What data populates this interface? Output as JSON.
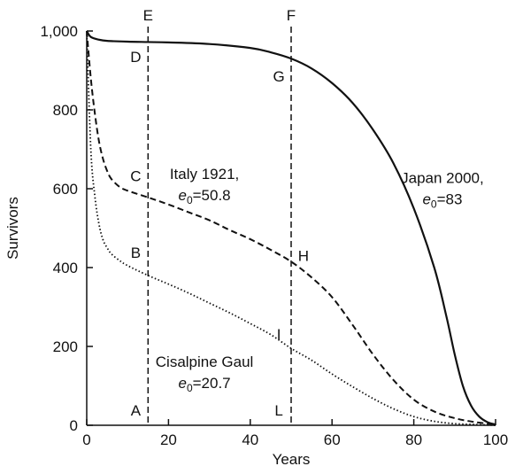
{
  "chart_data": {
    "type": "line",
    "title": "",
    "xlabel": "Years",
    "ylabel": "Survivors",
    "xlim": [
      0,
      100
    ],
    "ylim": [
      0,
      1000
    ],
    "x_ticks": [
      0,
      20,
      40,
      60,
      80,
      100
    ],
    "y_ticks": [
      0,
      200,
      400,
      600,
      800,
      1000
    ],
    "y_tick_labels": [
      "0",
      "200",
      "400",
      "600",
      "800",
      "1,000"
    ],
    "grid": false,
    "series": [
      {
        "name": "Japan 2000",
        "e0": "83",
        "style": "solid",
        "x": [
          0,
          1,
          3,
          5,
          10,
          15,
          20,
          30,
          40,
          45,
          50,
          55,
          60,
          65,
          70,
          75,
          80,
          85,
          88,
          90,
          92,
          94,
          96,
          98,
          100
        ],
        "y": [
          1000,
          985,
          978,
          975,
          973,
          972,
          971,
          967,
          957,
          946,
          930,
          905,
          868,
          818,
          750,
          665,
          550,
          400,
          275,
          180,
          100,
          50,
          22,
          8,
          2
        ]
      },
      {
        "name": "Italy 1921",
        "e0": "50.8",
        "style": "dashed",
        "x": [
          0,
          1,
          2,
          3,
          4,
          5,
          6,
          8,
          10,
          15,
          20,
          25,
          30,
          35,
          40,
          45,
          50,
          55,
          60,
          65,
          70,
          75,
          80,
          85,
          90,
          95,
          100
        ],
        "y": [
          1000,
          880,
          790,
          720,
          675,
          645,
          625,
          605,
          595,
          578,
          560,
          540,
          520,
          495,
          472,
          445,
          415,
          375,
          325,
          255,
          180,
          115,
          65,
          35,
          18,
          8,
          2
        ]
      },
      {
        "name": "Cisalpine Gaul",
        "e0": "20.7",
        "style": "dotted",
        "x": [
          0,
          1,
          2,
          3,
          4,
          5,
          6,
          8,
          10,
          15,
          20,
          25,
          30,
          35,
          40,
          45,
          50,
          55,
          60,
          65,
          70,
          75,
          80,
          85,
          90,
          95,
          100
        ],
        "y": [
          1000,
          700,
          580,
          510,
          470,
          450,
          435,
          418,
          405,
          380,
          358,
          335,
          310,
          285,
          258,
          230,
          195,
          165,
          130,
          98,
          68,
          42,
          22,
          10,
          4,
          2,
          0
        ]
      }
    ],
    "vlines": [
      {
        "x": 15,
        "label": "E"
      },
      {
        "x": 50,
        "label": "F"
      }
    ],
    "point_labels": [
      {
        "text": "A",
        "x": 12,
        "y": 38
      },
      {
        "text": "B",
        "x": 12,
        "y": 438
      },
      {
        "text": "C",
        "x": 12,
        "y": 633
      },
      {
        "text": "D",
        "x": 12,
        "y": 935
      },
      {
        "text": "G",
        "x": 47,
        "y": 885
      },
      {
        "text": "H",
        "x": 53,
        "y": 430
      },
      {
        "text": "I",
        "x": 47,
        "y": 232
      },
      {
        "text": "L",
        "x": 47,
        "y": 38
      }
    ],
    "series_labels": [
      {
        "name": "Italy 1921,",
        "e0_value": "50.8",
        "x": 28.8,
        "y": 625
      },
      {
        "name": "Japan 2000,",
        "e0_value": "83",
        "x": 87,
        "y": 615
      },
      {
        "name": "Cisalpine Gaul",
        "e0_value": "20.7",
        "x": 28.8,
        "y": 148
      }
    ],
    "e0_symbol": "e",
    "e0_subscript": "0",
    "e0_equals": "="
  }
}
